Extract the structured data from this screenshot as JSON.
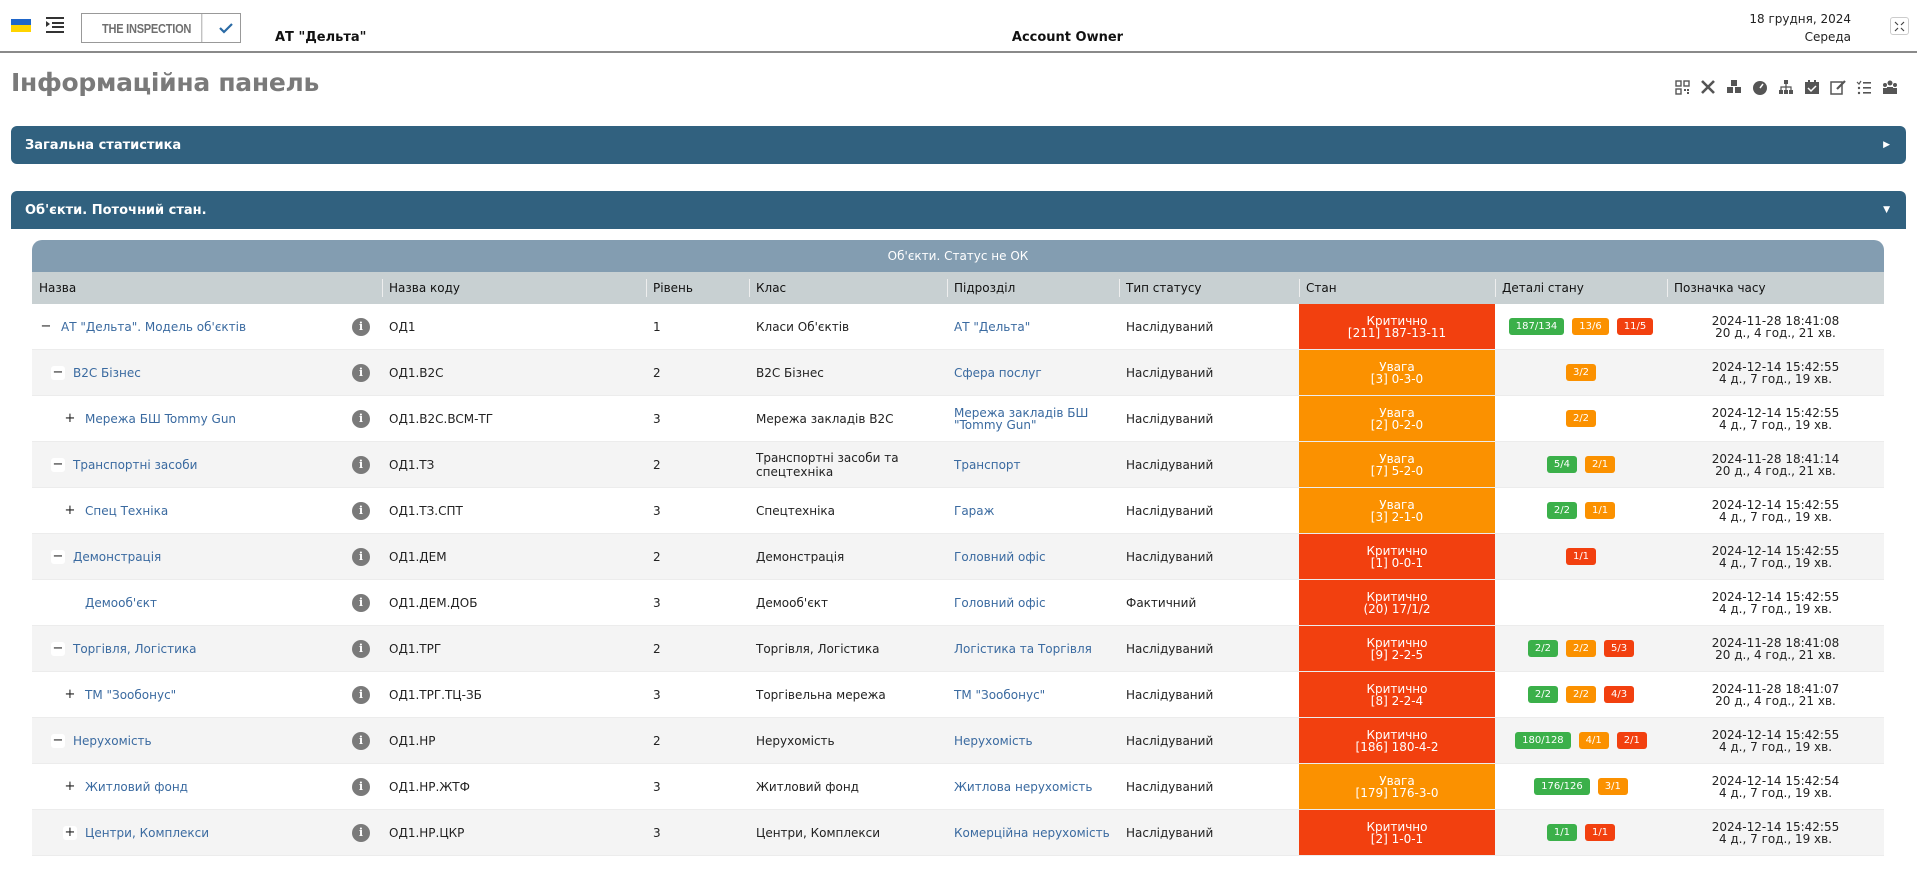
{
  "header": {
    "flag_icon": "ukraine-flag-icon",
    "menu_icon": "indent-menu-icon",
    "brand": "THE INSPECTION",
    "brand_check_icon": "check-icon",
    "company": "АТ \"Дельта\"",
    "role": "Account Owner",
    "date": "18 грудня, 2024",
    "weekday": "Середа",
    "fullscreen_icon": "fullscreen-icon"
  },
  "page_title": "Інформаційна панель",
  "toolbar_icons": [
    "qr-code-icon",
    "tools-icon",
    "cubes-icon",
    "gauge-icon",
    "hierarchy-icon",
    "calendar-check-icon",
    "edit-icon",
    "checklist-icon",
    "users-icon"
  ],
  "panels": {
    "general_stats": "Загальна статистика",
    "objects_state": "Об'єкти. Поточний стан."
  },
  "table": {
    "title": "Об'єкти. Статус не ОК",
    "columns": [
      "Назва",
      "Назва коду",
      "Рівень",
      "Клас",
      "Підрозділ",
      "Тип статусу",
      "Стан",
      "Деталі стану",
      "Позначка часу"
    ],
    "rows": [
      {
        "toggle": "−",
        "indent": 0,
        "name": "АТ \"Дельта\". Модель об'єктів",
        "code": "ОД1",
        "level": "1",
        "class": "Класи Об'єктів",
        "unit": "АТ \"Дельта\"",
        "type": "Наслідуваний",
        "state": "Критично",
        "state_detail": "[211] 187-13-11",
        "state_kind": "crit",
        "badges": [
          {
            "v": "187/134",
            "c": "g"
          },
          {
            "v": "13/6",
            "c": "o"
          },
          {
            "v": "11/5",
            "c": "r"
          }
        ],
        "time": "2024-11-28 18:41:08",
        "ago": "20 д., 4 год., 21 хв."
      },
      {
        "toggle": "−",
        "indent": 1,
        "name": "B2C Бізнес",
        "code": "ОД1.B2C",
        "level": "2",
        "class": "B2C Бізнес",
        "unit": "Сфера послуг",
        "type": "Наслідуваний",
        "state": "Увага",
        "state_detail": "[3] 0-3-0",
        "state_kind": "warn",
        "badges": [
          {
            "v": "3/2",
            "c": "o"
          }
        ],
        "time": "2024-12-14 15:42:55",
        "ago": "4 д., 7 год., 19 хв."
      },
      {
        "toggle": "+",
        "indent": 2,
        "name": "Мережа БШ Tommy Gun",
        "code": "ОД1.B2C.BCM-ТГ",
        "level": "3",
        "class": "Мережа закладів B2C",
        "unit": "Мережа закладів БШ \"Tommy Gun\"",
        "type": "Наслідуваний",
        "state": "Увага",
        "state_detail": "[2] 0-2-0",
        "state_kind": "warn",
        "badges": [
          {
            "v": "2/2",
            "c": "o"
          }
        ],
        "time": "2024-12-14 15:42:55",
        "ago": "4 д., 7 год., 19 хв."
      },
      {
        "toggle": "−",
        "indent": 1,
        "name": "Транспортні засоби",
        "code": "ОД1.ТЗ",
        "level": "2",
        "class": "Транспортні засоби та спецтехніка",
        "unit": "Транспорт",
        "type": "Наслідуваний",
        "state": "Увага",
        "state_detail": "[7] 5-2-0",
        "state_kind": "warn",
        "badges": [
          {
            "v": "5/4",
            "c": "g"
          },
          {
            "v": "2/1",
            "c": "o"
          }
        ],
        "time": "2024-11-28 18:41:14",
        "ago": "20 д., 4 год., 21 хв."
      },
      {
        "toggle": "+",
        "indent": 2,
        "name": "Спец Техніка",
        "code": "ОД1.ТЗ.СПТ",
        "level": "3",
        "class": "Спецтехніка",
        "unit": "Гараж",
        "type": "Наслідуваний",
        "state": "Увага",
        "state_detail": "[3] 2-1-0",
        "state_kind": "warn",
        "badges": [
          {
            "v": "2/2",
            "c": "g"
          },
          {
            "v": "1/1",
            "c": "o"
          }
        ],
        "time": "2024-12-14 15:42:55",
        "ago": "4 д., 7 год., 19 хв."
      },
      {
        "toggle": "−",
        "indent": 1,
        "name": "Демонстрація",
        "code": "ОД1.ДЕМ",
        "level": "2",
        "class": "Демонстрація",
        "unit": "Головний офіс",
        "type": "Наслідуваний",
        "state": "Критично",
        "state_detail": "[1] 0-0-1",
        "state_kind": "crit",
        "badges": [
          {
            "v": "1/1",
            "c": "r"
          }
        ],
        "time": "2024-12-14 15:42:55",
        "ago": "4 д., 7 год., 19 хв."
      },
      {
        "toggle": "",
        "indent": 2,
        "name": "Демооб'єкт",
        "code": "ОД1.ДЕМ.ДОБ",
        "level": "3",
        "class": "Демооб'єкт",
        "unit": "Головний офіс",
        "type": "Фактичний",
        "state": "Критично",
        "state_detail": "(20) 17/1/2",
        "state_kind": "crit",
        "badges": [],
        "time": "2024-12-14 15:42:55",
        "ago": "4 д., 7 год., 19 хв."
      },
      {
        "toggle": "−",
        "indent": 1,
        "name": "Торгівля, Логістика",
        "code": "ОД1.ТРГ",
        "level": "2",
        "class": "Торгівля, Логістика",
        "unit": "Логістика та Торгівля",
        "type": "Наслідуваний",
        "state": "Критично",
        "state_detail": "[9] 2-2-5",
        "state_kind": "crit",
        "badges": [
          {
            "v": "2/2",
            "c": "g"
          },
          {
            "v": "2/2",
            "c": "o"
          },
          {
            "v": "5/3",
            "c": "r"
          }
        ],
        "time": "2024-11-28 18:41:08",
        "ago": "20 д., 4 год., 21 хв."
      },
      {
        "toggle": "+",
        "indent": 2,
        "name": "ТМ \"Зообонус\"",
        "code": "ОД1.ТРГ.ТЦ-ЗБ",
        "level": "3",
        "class": "Торгівельна мережа",
        "unit": "ТМ \"Зообонус\"",
        "type": "Наслідуваний",
        "state": "Критично",
        "state_detail": "[8] 2-2-4",
        "state_kind": "crit",
        "badges": [
          {
            "v": "2/2",
            "c": "g"
          },
          {
            "v": "2/2",
            "c": "o"
          },
          {
            "v": "4/3",
            "c": "r"
          }
        ],
        "time": "2024-11-28 18:41:07",
        "ago": "20 д., 4 год., 21 хв."
      },
      {
        "toggle": "−",
        "indent": 1,
        "name": "Нерухомість",
        "code": "ОД1.НР",
        "level": "2",
        "class": "Нерухомість",
        "unit": "Нерухомість",
        "type": "Наслідуваний",
        "state": "Критично",
        "state_detail": "[186] 180-4-2",
        "state_kind": "crit",
        "badges": [
          {
            "v": "180/128",
            "c": "g"
          },
          {
            "v": "4/1",
            "c": "o"
          },
          {
            "v": "2/1",
            "c": "r"
          }
        ],
        "time": "2024-12-14 15:42:55",
        "ago": "4 д., 7 год., 19 хв."
      },
      {
        "toggle": "+",
        "indent": 2,
        "name": "Житловий фонд",
        "code": "ОД1.НР.ЖТФ",
        "level": "3",
        "class": "Житловий фонд",
        "unit": "Житлова нерухомість",
        "type": "Наслідуваний",
        "state": "Увага",
        "state_detail": "[179] 176-3-0",
        "state_kind": "warn",
        "badges": [
          {
            "v": "176/126",
            "c": "g"
          },
          {
            "v": "3/1",
            "c": "o"
          }
        ],
        "time": "2024-12-14 15:42:54",
        "ago": "4 д., 7 год., 19 хв."
      },
      {
        "toggle": "+",
        "indent": 2,
        "name": "Центри, Комплекси",
        "code": "ОД1.НР.ЦКР",
        "level": "3",
        "class": "Центри, Комплекси",
        "unit": "Комерційна нерухомість",
        "type": "Наслідуваний",
        "state": "Критично",
        "state_detail": "[2] 1-0-1",
        "state_kind": "crit",
        "badges": [
          {
            "v": "1/1",
            "c": "g"
          },
          {
            "v": "1/1",
            "c": "r"
          }
        ],
        "time": "2024-12-14 15:42:55",
        "ago": "4 д., 7 год., 19 хв."
      }
    ]
  },
  "colors": {
    "panel": "#31617f",
    "table_title": "#839db1",
    "critical": "#f2400f",
    "warning": "#fb9100",
    "ok": "#3bb04a",
    "link": "#3a6aa0"
  }
}
